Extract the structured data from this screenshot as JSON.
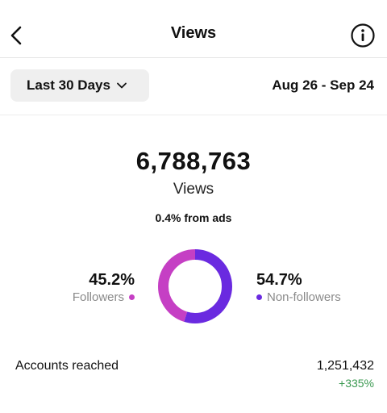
{
  "header": {
    "title": "Views",
    "back_icon": "chevron-left-icon",
    "info_icon": "info-icon"
  },
  "filter": {
    "range_label": "Last 30 Days",
    "range_icon": "chevron-down-icon",
    "date_range": "Aug 26 - Sep 24"
  },
  "summary": {
    "total": "6,788,763",
    "total_label": "Views",
    "ads_note": "0.4% from ads"
  },
  "breakdown": {
    "followers": {
      "percent": "45.2%",
      "label": "Followers",
      "value": 45.2,
      "color": "#c53fc4"
    },
    "non_followers": {
      "percent": "54.7%",
      "label": "Non-followers",
      "value": 54.7,
      "color": "#6a2ae0"
    }
  },
  "accounts_reached": {
    "label": "Accounts reached",
    "value": "1,251,432",
    "change": "+335%"
  }
}
